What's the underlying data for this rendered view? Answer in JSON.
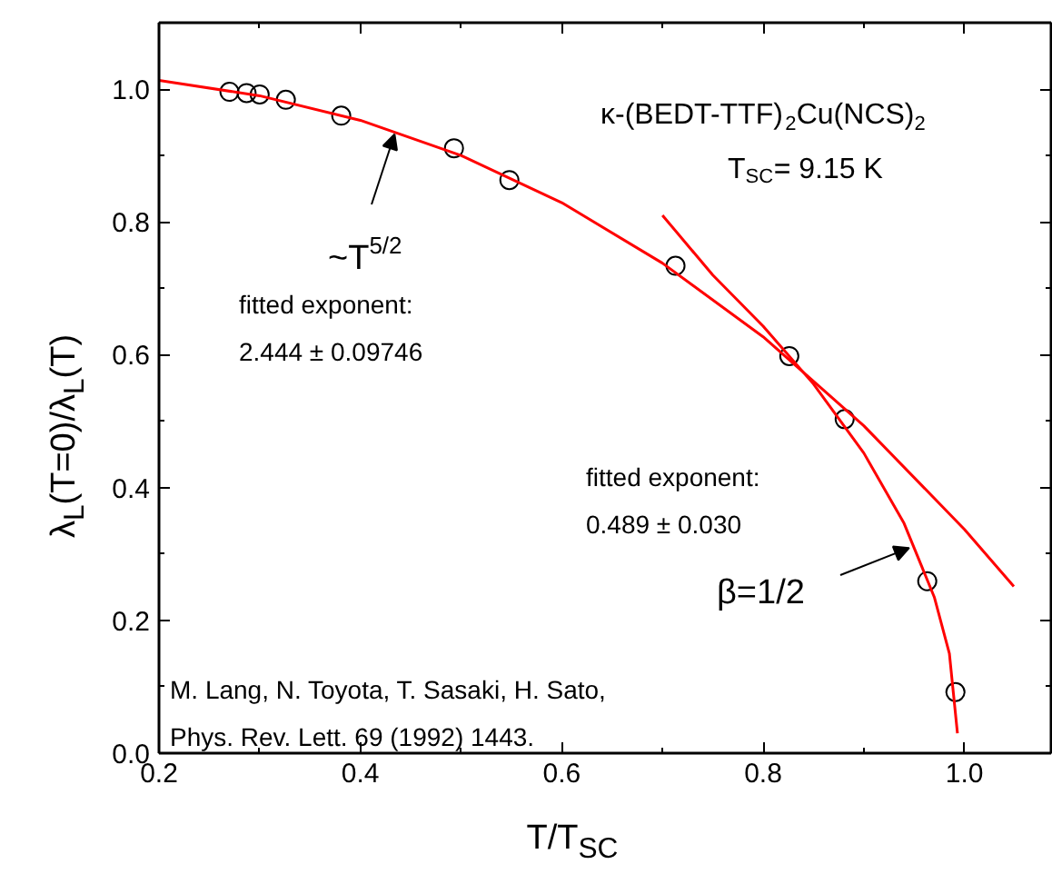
{
  "chart_data": {
    "type": "scatter",
    "xlabel": "T/T$_{SC}$",
    "ylabel": "λ$_{L}$(T=0)/λ$_{L}$(T)",
    "xlim": [
      0.2,
      1.086
    ],
    "ylim": [
      0.0,
      1.1
    ],
    "xticks": [
      0.2,
      {
        "value": 0.3,
        "label": null
      },
      0.4,
      {
        "value": 0.5,
        "label": null
      },
      0.6,
      {
        "value": 0.7,
        "label": null
      },
      0.8,
      {
        "value": 0.9,
        "label": null
      },
      {
        "value": 1,
        "label": "1.0"
      }
    ],
    "yticks": [
      {
        "value": 0,
        "label": "0.0"
      },
      {
        "value": 0.1,
        "label": null
      },
      0.2,
      {
        "value": 0.3,
        "label": null
      },
      0.4,
      {
        "value": 0.5,
        "label": null
      },
      0.6,
      {
        "value": 0.7,
        "label": null
      },
      0.8,
      {
        "value": 0.9,
        "label": null
      },
      {
        "value": 1,
        "label": "1.0"
      }
    ],
    "grid": false,
    "legend": false,
    "series": [
      {
        "marker": "circle",
        "color": "#000000",
        "x": [
          0.27,
          0.287,
          0.3,
          0.326,
          0.381,
          0.493,
          0.548,
          0.713,
          0.826,
          0.881,
          0.963,
          0.991
        ],
        "values": [
          0.996,
          0.994,
          0.992,
          0.984,
          0.96,
          0.911,
          0.863,
          0.734,
          0.598,
          0.503,
          0.259,
          0.092
        ]
      },
      {
        "type": "line",
        "color": "#ff0000",
        "x": [
          0.2,
          0.3,
          0.4,
          0.5,
          0.6,
          0.7,
          0.8,
          0.9,
          1.0,
          1.049
        ],
        "values": [
          1.013,
          0.99,
          0.953,
          0.9,
          0.829,
          0.738,
          0.627,
          0.493,
          0.337,
          0.251
        ]
      },
      {
        "type": "line",
        "color": "#ff0000",
        "x": [
          0.7,
          0.75,
          0.8,
          0.85,
          0.9,
          0.94,
          0.97,
          0.985,
          0.993
        ],
        "values": [
          0.81,
          0.72,
          0.643,
          0.556,
          0.452,
          0.346,
          0.235,
          0.15,
          0.03
        ]
      }
    ],
    "annotations": [
      "κ-(BEDT-TTF)$_{2}$Cu(NCS)$_{2}$",
      "T$_{SC}$= 9.15 K",
      {
        "text": "~T$^{5/2}$",
        "x": 0.434,
        "y": 0.932
      },
      "fitted exponent:",
      "2.444 ± 0.09746",
      "fitted exponent:",
      "0.489 ± 0.030",
      {
        "text": "β=1/2",
        "x": 0.945,
        "y": 0.309
      },
      "M. Lang, N. Toyota, T. Sasaki, H. Sato,",
      "Phys. Rev. Lett. 69 (1992) 1443."
    ]
  }
}
